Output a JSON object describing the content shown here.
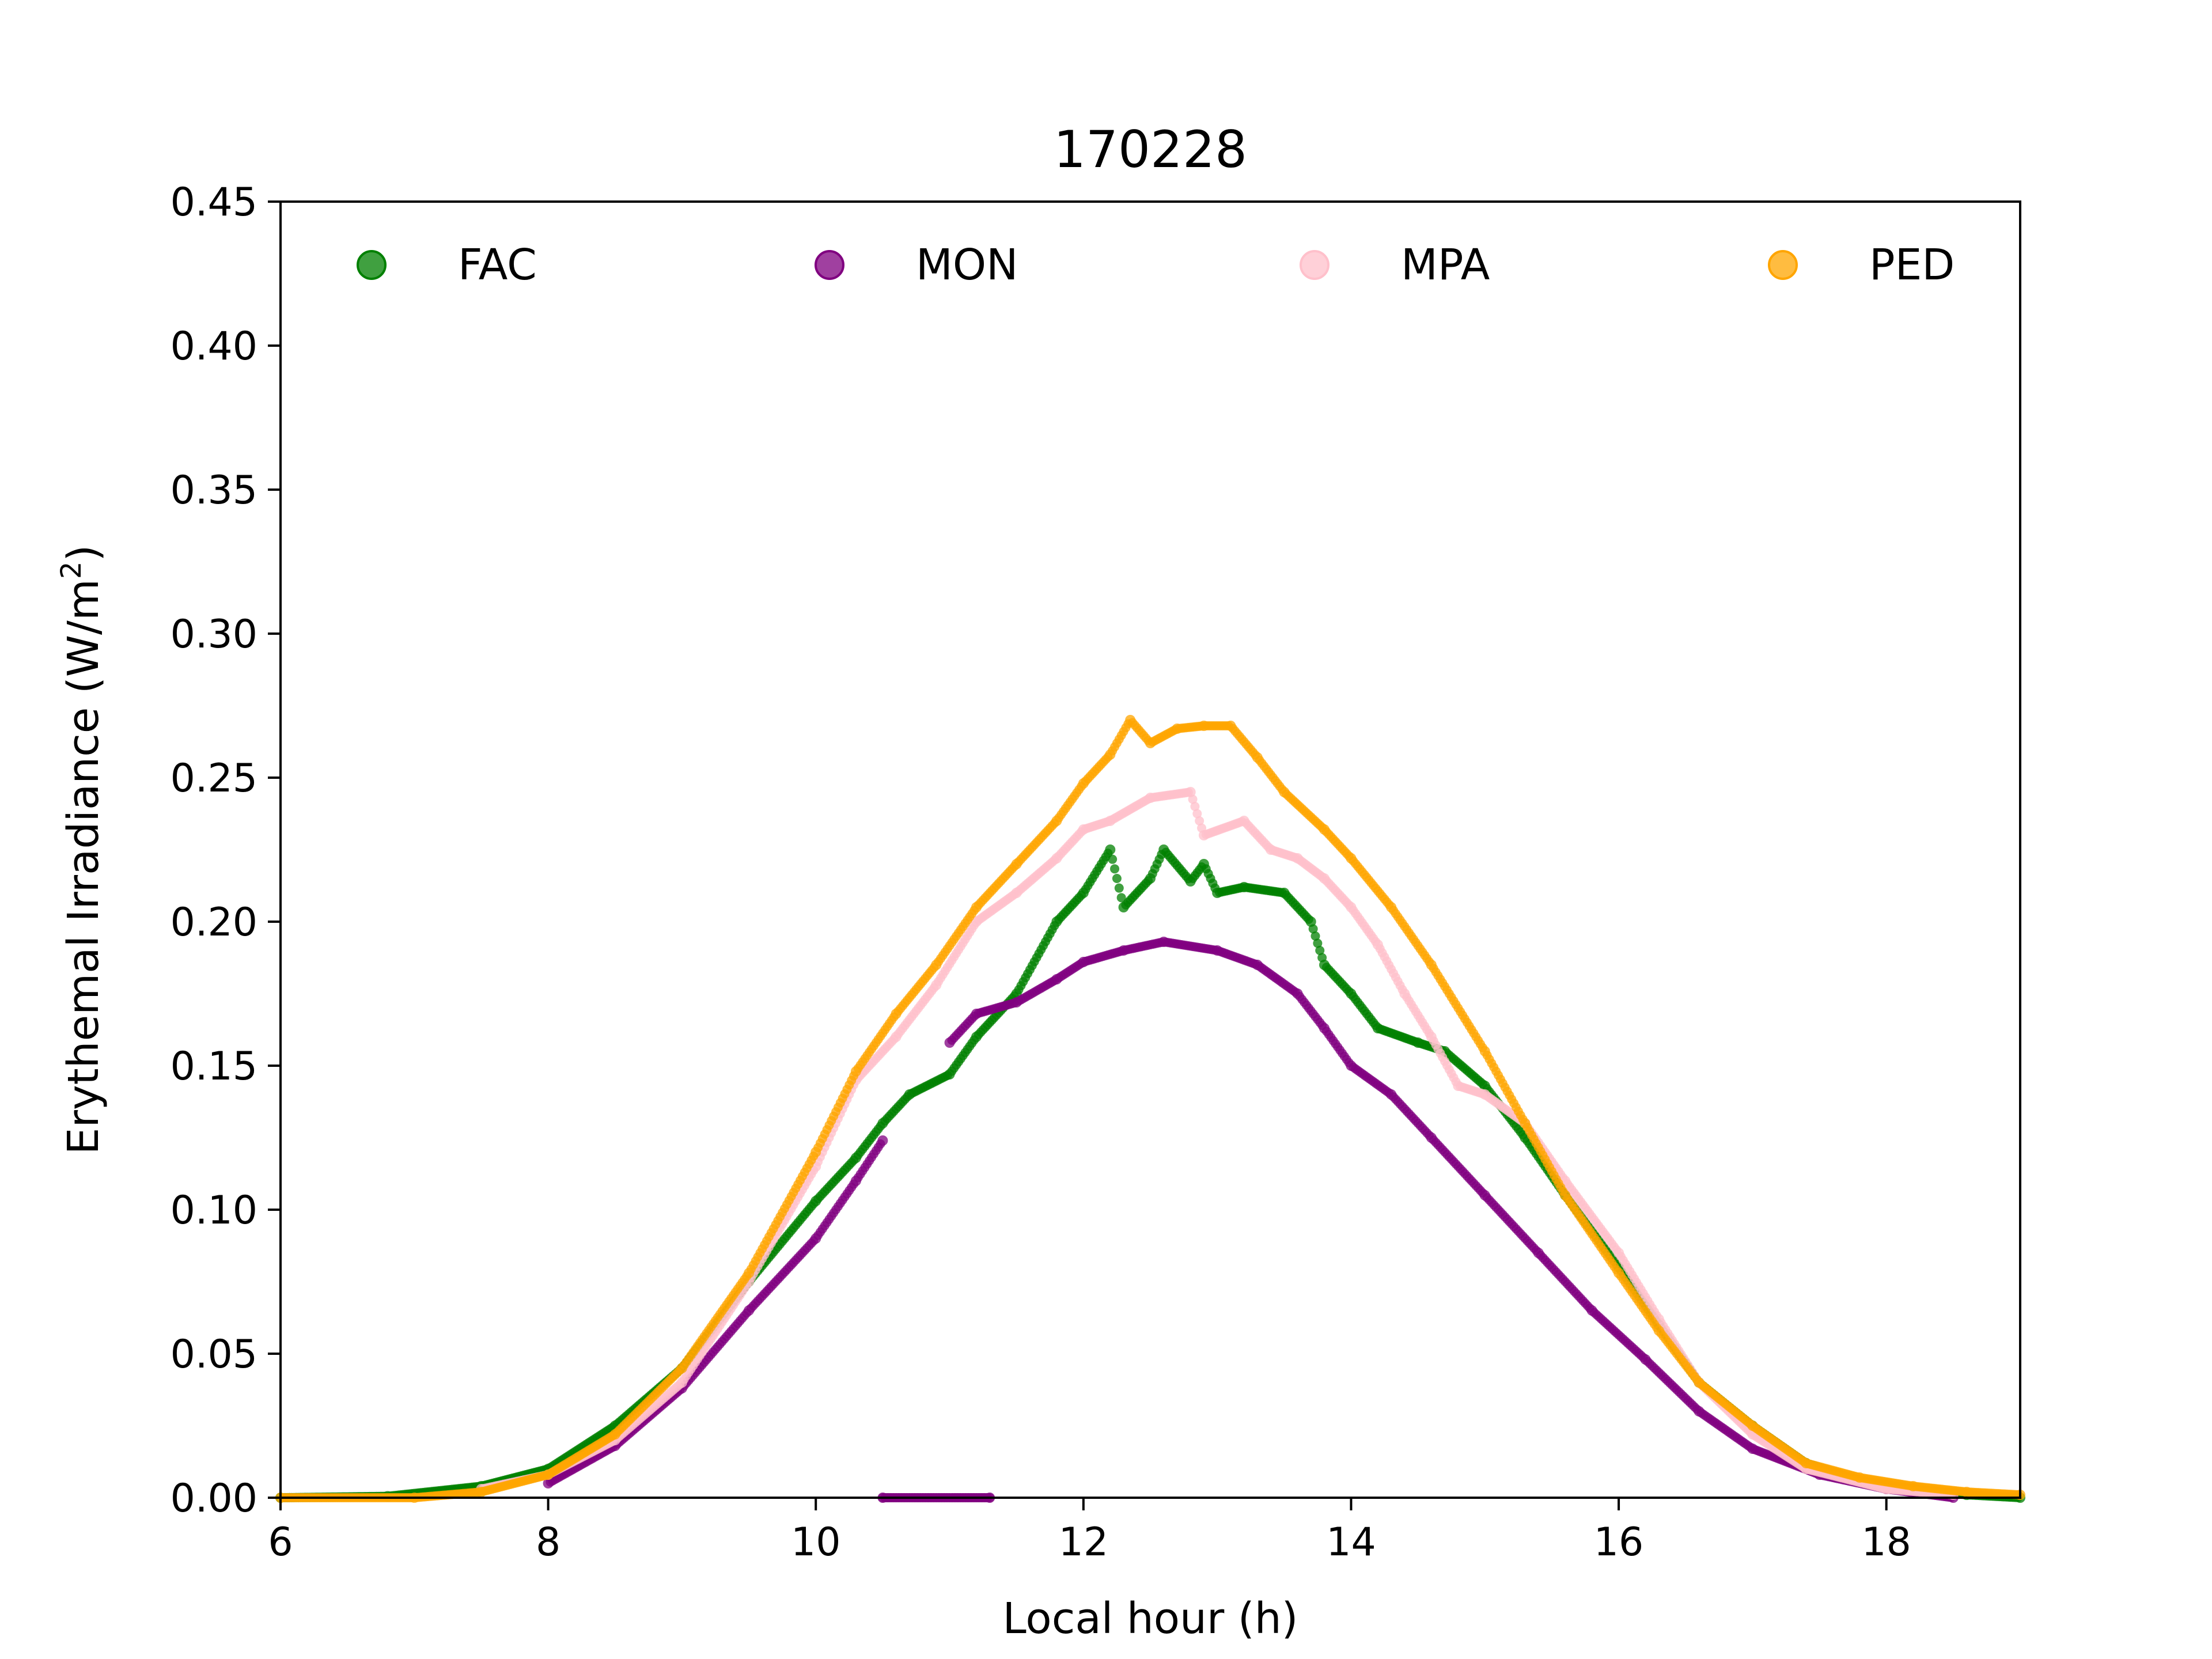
{
  "chart_data": {
    "type": "scatter",
    "title": "170228",
    "xlabel": "Local hour (h)",
    "ylabel": "Erythemal Irradiance (W/m²)",
    "ylabel_main": "Erythemal Irradiance (W/m",
    "ylabel_sup": "2",
    "ylabel_close": ")",
    "xlim": [
      6,
      19
    ],
    "ylim": [
      0,
      0.45
    ],
    "xticks": [
      "6",
      "8",
      "10",
      "12",
      "14",
      "16",
      "18"
    ],
    "yticks": [
      "0.00",
      "0.05",
      "0.10",
      "0.15",
      "0.20",
      "0.25",
      "0.30",
      "0.35",
      "0.40",
      "0.45"
    ],
    "grid": false,
    "legend_position": "top (single row, inside axes)",
    "series": [
      {
        "name": "FAC",
        "color": "#008000",
        "points": [
          [
            6.0,
            0.0
          ],
          [
            6.8,
            0.0005
          ],
          [
            7.5,
            0.004
          ],
          [
            8.0,
            0.01
          ],
          [
            8.5,
            0.025
          ],
          [
            9.0,
            0.045
          ],
          [
            9.5,
            0.075
          ],
          [
            10.0,
            0.103
          ],
          [
            10.3,
            0.118
          ],
          [
            10.5,
            0.13
          ],
          [
            10.7,
            0.14
          ],
          [
            11.0,
            0.147
          ],
          [
            11.2,
            0.16
          ],
          [
            11.5,
            0.175
          ],
          [
            11.8,
            0.2
          ],
          [
            12.0,
            0.21
          ],
          [
            12.2,
            0.225
          ],
          [
            12.3,
            0.205
          ],
          [
            12.5,
            0.215
          ],
          [
            12.6,
            0.225
          ],
          [
            12.8,
            0.214
          ],
          [
            12.9,
            0.22
          ],
          [
            13.0,
            0.21
          ],
          [
            13.2,
            0.212
          ],
          [
            13.5,
            0.21
          ],
          [
            13.7,
            0.2
          ],
          [
            13.8,
            0.185
          ],
          [
            14.0,
            0.175
          ],
          [
            14.2,
            0.163
          ],
          [
            14.5,
            0.158
          ],
          [
            14.7,
            0.155
          ],
          [
            15.0,
            0.143
          ],
          [
            15.3,
            0.125
          ],
          [
            15.6,
            0.105
          ],
          [
            16.0,
            0.08
          ],
          [
            16.3,
            0.06
          ],
          [
            16.6,
            0.04
          ],
          [
            17.0,
            0.025
          ],
          [
            17.4,
            0.012
          ],
          [
            17.8,
            0.006
          ],
          [
            18.2,
            0.003
          ],
          [
            18.6,
            0.001
          ],
          [
            19.0,
            0.0
          ]
        ]
      },
      {
        "name": "MON",
        "color": "#800080",
        "points": [
          [
            8.0,
            0.005
          ],
          [
            8.5,
            0.018
          ],
          [
            9.0,
            0.038
          ],
          [
            9.5,
            0.065
          ],
          [
            10.0,
            0.09
          ],
          [
            10.3,
            0.11
          ],
          [
            10.5,
            0.124
          ],
          [
            10.5,
            0.0
          ],
          [
            11.3,
            0.0
          ],
          [
            11.0,
            0.158
          ],
          [
            11.2,
            0.168
          ],
          [
            11.5,
            0.172
          ],
          [
            11.8,
            0.18
          ],
          [
            12.0,
            0.186
          ],
          [
            12.3,
            0.19
          ],
          [
            12.6,
            0.193
          ],
          [
            13.0,
            0.19
          ],
          [
            13.3,
            0.185
          ],
          [
            13.6,
            0.175
          ],
          [
            13.8,
            0.163
          ],
          [
            14.0,
            0.15
          ],
          [
            14.3,
            0.14
          ],
          [
            14.6,
            0.125
          ],
          [
            15.0,
            0.105
          ],
          [
            15.4,
            0.085
          ],
          [
            15.8,
            0.065
          ],
          [
            16.2,
            0.048
          ],
          [
            16.6,
            0.03
          ],
          [
            17.0,
            0.017
          ],
          [
            17.5,
            0.008
          ],
          [
            18.0,
            0.003
          ],
          [
            18.5,
            0.0
          ]
        ]
      },
      {
        "name": "MPA",
        "color": "#ffc0cb",
        "points": [
          [
            7.5,
            0.003
          ],
          [
            8.0,
            0.008
          ],
          [
            8.5,
            0.02
          ],
          [
            9.0,
            0.04
          ],
          [
            9.5,
            0.075
          ],
          [
            10.0,
            0.115
          ],
          [
            10.3,
            0.145
          ],
          [
            10.6,
            0.16
          ],
          [
            10.9,
            0.178
          ],
          [
            11.2,
            0.2
          ],
          [
            11.5,
            0.21
          ],
          [
            11.8,
            0.222
          ],
          [
            12.0,
            0.232
          ],
          [
            12.2,
            0.235
          ],
          [
            12.5,
            0.243
          ],
          [
            12.8,
            0.245
          ],
          [
            12.9,
            0.23
          ],
          [
            13.2,
            0.235
          ],
          [
            13.4,
            0.225
          ],
          [
            13.6,
            0.222
          ],
          [
            13.8,
            0.215
          ],
          [
            14.0,
            0.205
          ],
          [
            14.2,
            0.192
          ],
          [
            14.4,
            0.175
          ],
          [
            14.6,
            0.16
          ],
          [
            14.8,
            0.143
          ],
          [
            15.0,
            0.14
          ],
          [
            15.3,
            0.13
          ],
          [
            15.6,
            0.11
          ],
          [
            16.0,
            0.085
          ],
          [
            16.3,
            0.062
          ],
          [
            16.6,
            0.04
          ],
          [
            17.0,
            0.022
          ],
          [
            17.4,
            0.01
          ],
          [
            18.0,
            0.003
          ],
          [
            18.5,
            0.001
          ]
        ]
      },
      {
        "name": "PED",
        "color": "#ffa500",
        "points": [
          [
            6.0,
            0.0
          ],
          [
            7.0,
            0.0
          ],
          [
            7.5,
            0.002
          ],
          [
            8.0,
            0.008
          ],
          [
            8.5,
            0.022
          ],
          [
            9.0,
            0.045
          ],
          [
            9.5,
            0.078
          ],
          [
            10.0,
            0.12
          ],
          [
            10.3,
            0.148
          ],
          [
            10.6,
            0.168
          ],
          [
            10.9,
            0.185
          ],
          [
            11.2,
            0.205
          ],
          [
            11.5,
            0.22
          ],
          [
            11.8,
            0.235
          ],
          [
            12.0,
            0.248
          ],
          [
            12.2,
            0.258
          ],
          [
            12.35,
            0.27
          ],
          [
            12.5,
            0.262
          ],
          [
            12.7,
            0.267
          ],
          [
            12.9,
            0.268
          ],
          [
            13.1,
            0.268
          ],
          [
            13.3,
            0.257
          ],
          [
            13.5,
            0.245
          ],
          [
            13.8,
            0.232
          ],
          [
            14.0,
            0.222
          ],
          [
            14.3,
            0.205
          ],
          [
            14.6,
            0.185
          ],
          [
            15.0,
            0.155
          ],
          [
            15.3,
            0.13
          ],
          [
            15.6,
            0.105
          ],
          [
            16.0,
            0.078
          ],
          [
            16.3,
            0.058
          ],
          [
            16.6,
            0.04
          ],
          [
            17.0,
            0.025
          ],
          [
            17.4,
            0.012
          ],
          [
            17.8,
            0.007
          ],
          [
            18.2,
            0.004
          ],
          [
            18.6,
            0.002
          ],
          [
            19.0,
            0.001
          ]
        ]
      }
    ]
  }
}
